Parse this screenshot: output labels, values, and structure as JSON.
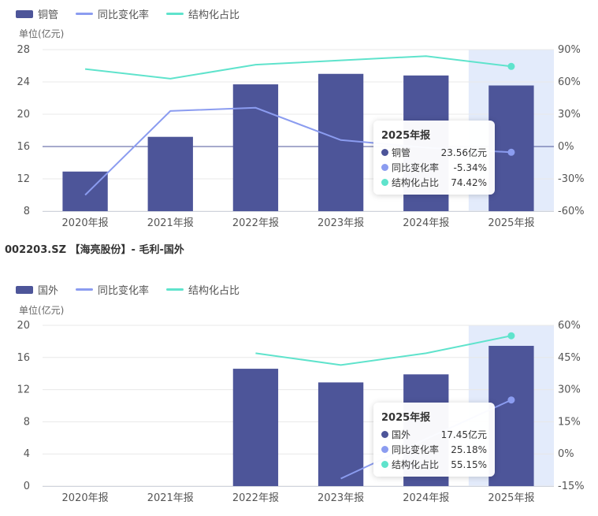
{
  "colors": {
    "bar": "#4d5599",
    "yoy": "#8b9cf0",
    "share": "#5fe3cc",
    "highlight": "#e3ebfb",
    "grid": "#e8e8e8",
    "zero": "#4d5599"
  },
  "chart2_title": "002203.SZ 【海亮股份】- 毛利-国外",
  "chart_data": [
    {
      "type": "bar",
      "legend": [
        {
          "label": "铜管",
          "kind": "bar"
        },
        {
          "label": "同比变化率",
          "kind": "line-yoy"
        },
        {
          "label": "结构化占比",
          "kind": "line-share"
        }
      ],
      "unit": "单位(亿元)",
      "categories": [
        "2020年报",
        "2021年报",
        "2022年报",
        "2023年报",
        "2024年报",
        "2025年报"
      ],
      "series": [
        {
          "name": "铜管",
          "axis": "left",
          "values": [
            12.9,
            17.2,
            23.7,
            25.0,
            24.8,
            23.56
          ]
        },
        {
          "name": "同比变化率",
          "axis": "right",
          "values": [
            -45,
            33,
            36,
            6,
            -1,
            -5.34
          ]
        },
        {
          "name": "结构化占比",
          "axis": "right",
          "values": [
            72,
            63,
            76,
            80,
            84,
            74.42
          ]
        }
      ],
      "ylim_left": [
        8,
        28
      ],
      "yticks_left": [
        "8",
        "12",
        "16",
        "20",
        "24",
        "28"
      ],
      "ytick_values_left": [
        8,
        12,
        16,
        20,
        24,
        28
      ],
      "ylim_right": [
        -60,
        90
      ],
      "yticks_right": [
        "-60%",
        "-30%",
        "0%",
        "30%",
        "60%",
        "90%"
      ],
      "ytick_values_right": [
        -60,
        -30,
        0,
        30,
        60,
        90
      ],
      "highlight_index": 5,
      "tooltip": {
        "title": "2025年报",
        "rows": [
          {
            "name": "铜管",
            "value": "23.56亿元",
            "color_key": "bar"
          },
          {
            "name": "同比变化率",
            "value": "-5.34%",
            "color_key": "yoy"
          },
          {
            "name": "结构化占比",
            "value": "74.42%",
            "color_key": "share"
          }
        ]
      }
    },
    {
      "type": "bar",
      "legend": [
        {
          "label": "国外",
          "kind": "bar"
        },
        {
          "label": "同比变化率",
          "kind": "line-yoy"
        },
        {
          "label": "结构化占比",
          "kind": "line-share"
        }
      ],
      "unit": "单位(亿元)",
      "categories": [
        "2020年报",
        "2021年报",
        "2022年报",
        "2023年报",
        "2024年报",
        "2025年报"
      ],
      "series": [
        {
          "name": "国外",
          "axis": "left",
          "values": [
            null,
            null,
            14.6,
            12.9,
            13.9,
            17.45
          ]
        },
        {
          "name": "同比变化率",
          "axis": "right",
          "values": [
            null,
            null,
            null,
            -11.5,
            7,
            25.18
          ]
        },
        {
          "name": "结构化占比",
          "axis": "right",
          "values": [
            null,
            null,
            47,
            41.5,
            47,
            55.15
          ]
        }
      ],
      "ylim_left": [
        0,
        20
      ],
      "yticks_left": [
        "0",
        "4",
        "8",
        "12",
        "16",
        "20"
      ],
      "ytick_values_left": [
        0,
        4,
        8,
        12,
        16,
        20
      ],
      "ylim_right": [
        -15,
        60
      ],
      "yticks_right": [
        "-15%",
        "0%",
        "15%",
        "30%",
        "45%",
        "60%"
      ],
      "ytick_values_right": [
        -15,
        0,
        15,
        30,
        45,
        60
      ],
      "highlight_index": 5,
      "tooltip": {
        "title": "2025年报",
        "rows": [
          {
            "name": "国外",
            "value": "17.45亿元",
            "color_key": "bar"
          },
          {
            "name": "同比变化率",
            "value": "25.18%",
            "color_key": "yoy"
          },
          {
            "name": "结构化占比",
            "value": "55.15%",
            "color_key": "share"
          }
        ]
      }
    }
  ]
}
